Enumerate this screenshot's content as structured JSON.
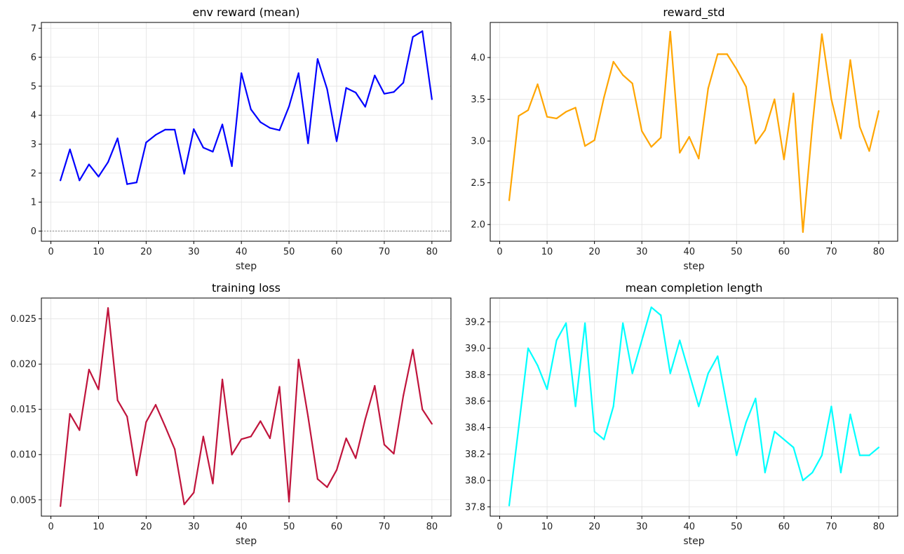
{
  "chart_data": [
    {
      "type": "line",
      "title": "env reward (mean)",
      "xlabel": "step",
      "ylabel": "",
      "color": "#0000ff",
      "xlim": [
        -2,
        84
      ],
      "ylim": [
        -0.35,
        7.2
      ],
      "xticks": [
        0,
        10,
        20,
        30,
        40,
        50,
        60,
        70,
        80
      ],
      "yticks": [
        0,
        1,
        2,
        3,
        4,
        5,
        6,
        7
      ],
      "ytick_labels": [
        "0",
        "1",
        "2",
        "3",
        "4",
        "5",
        "6",
        "7"
      ],
      "grid": true,
      "reference_line": {
        "y": 0,
        "style": "dotted",
        "color": "#999999"
      },
      "x": [
        2,
        4,
        6,
        8,
        10,
        12,
        14,
        16,
        18,
        20,
        22,
        24,
        26,
        28,
        30,
        32,
        34,
        36,
        38,
        40,
        42,
        44,
        46,
        48,
        50,
        52,
        54,
        56,
        58,
        60,
        62,
        64,
        66,
        68,
        70,
        72,
        74,
        76,
        78,
        80
      ],
      "values": [
        1.75,
        2.82,
        1.75,
        2.3,
        1.88,
        2.38,
        3.2,
        1.62,
        1.68,
        3.06,
        3.32,
        3.5,
        3.5,
        1.98,
        3.52,
        2.88,
        2.74,
        3.68,
        2.24,
        5.45,
        4.2,
        3.76,
        3.56,
        3.48,
        4.3,
        5.45,
        3.03,
        5.94,
        4.9,
        3.1,
        4.94,
        4.78,
        4.29,
        5.37,
        4.74,
        4.8,
        5.12,
        6.7,
        6.9,
        4.55
      ]
    },
    {
      "type": "line",
      "title": "reward_std",
      "xlabel": "step",
      "ylabel": "",
      "color": "#ffa500",
      "xlim": [
        -2,
        84
      ],
      "ylim": [
        1.8,
        4.42
      ],
      "xticks": [
        0,
        10,
        20,
        30,
        40,
        50,
        60,
        70,
        80
      ],
      "yticks": [
        2.0,
        2.5,
        3.0,
        3.5,
        4.0
      ],
      "ytick_labels": [
        "2.0",
        "2.5",
        "3.0",
        "3.5",
        "4.0"
      ],
      "grid": true,
      "x": [
        2,
        4,
        6,
        8,
        10,
        12,
        14,
        16,
        18,
        20,
        22,
        24,
        26,
        28,
        30,
        32,
        34,
        36,
        38,
        40,
        42,
        44,
        46,
        48,
        50,
        52,
        54,
        56,
        58,
        60,
        62,
        64,
        66,
        68,
        70,
        72,
        74,
        76,
        78,
        80
      ],
      "values": [
        2.29,
        3.3,
        3.37,
        3.68,
        3.29,
        3.27,
        3.35,
        3.4,
        2.94,
        3.01,
        3.52,
        3.95,
        3.79,
        3.69,
        3.12,
        2.93,
        3.04,
        4.31,
        2.86,
        3.05,
        2.79,
        3.63,
        4.04,
        4.04,
        3.86,
        3.65,
        2.97,
        3.13,
        3.5,
        2.78,
        3.57,
        1.91,
        3.19,
        4.28,
        3.5,
        3.03,
        3.97,
        3.17,
        2.88,
        3.36
      ]
    },
    {
      "type": "line",
      "title": "training loss",
      "xlabel": "step",
      "ylabel": "",
      "color": "#c0143c",
      "xlim": [
        -2,
        84
      ],
      "ylim": [
        0.0032,
        0.0273
      ],
      "xticks": [
        0,
        10,
        20,
        30,
        40,
        50,
        60,
        70,
        80
      ],
      "yticks": [
        0.005,
        0.01,
        0.015,
        0.02,
        0.025
      ],
      "ytick_labels": [
        "0.005",
        "0.010",
        "0.015",
        "0.020",
        "0.025"
      ],
      "grid": true,
      "x": [
        2,
        4,
        6,
        8,
        10,
        12,
        14,
        16,
        18,
        20,
        22,
        24,
        26,
        28,
        30,
        32,
        34,
        36,
        38,
        40,
        42,
        44,
        46,
        48,
        50,
        52,
        54,
        56,
        58,
        60,
        62,
        64,
        66,
        68,
        70,
        72,
        74,
        76,
        78,
        80
      ],
      "values": [
        0.0043,
        0.0145,
        0.0127,
        0.0194,
        0.0172,
        0.0262,
        0.016,
        0.0142,
        0.0077,
        0.0136,
        0.0155,
        0.0131,
        0.0106,
        0.0045,
        0.0058,
        0.012,
        0.0068,
        0.0183,
        0.01,
        0.0117,
        0.012,
        0.0137,
        0.0118,
        0.0175,
        0.0048,
        0.0205,
        0.0142,
        0.0073,
        0.0064,
        0.0083,
        0.0118,
        0.0096,
        0.0139,
        0.0176,
        0.0111,
        0.0101,
        0.0165,
        0.0216,
        0.015,
        0.0134
      ]
    },
    {
      "type": "line",
      "title": "mean completion length",
      "xlabel": "step",
      "ylabel": "",
      "color": "#00ffff",
      "xlim": [
        -2,
        84
      ],
      "ylim": [
        37.73,
        39.38
      ],
      "xticks": [
        0,
        10,
        20,
        30,
        40,
        50,
        60,
        70,
        80
      ],
      "yticks": [
        37.8,
        38.0,
        38.2,
        38.4,
        38.6,
        38.8,
        39.0,
        39.2
      ],
      "ytick_labels": [
        "37.8",
        "38.0",
        "38.2",
        "38.4",
        "38.6",
        "38.8",
        "39.0",
        "39.2"
      ],
      "grid": true,
      "x": [
        2,
        4,
        6,
        8,
        10,
        12,
        14,
        16,
        18,
        20,
        22,
        24,
        26,
        28,
        30,
        32,
        34,
        36,
        38,
        40,
        42,
        44,
        46,
        48,
        50,
        52,
        54,
        56,
        58,
        60,
        62,
        64,
        66,
        68,
        70,
        72,
        74,
        76,
        78,
        80
      ],
      "values": [
        37.81,
        38.4,
        39.0,
        38.87,
        38.69,
        39.06,
        39.19,
        38.56,
        39.19,
        38.37,
        38.31,
        38.56,
        39.19,
        38.81,
        39.06,
        39.31,
        39.25,
        38.81,
        39.06,
        38.81,
        38.56,
        38.81,
        38.94,
        38.56,
        38.19,
        38.44,
        38.62,
        38.06,
        38.37,
        38.31,
        38.25,
        38.0,
        38.06,
        38.19,
        38.56,
        38.06,
        38.5,
        38.19,
        38.19,
        38.25
      ]
    }
  ]
}
